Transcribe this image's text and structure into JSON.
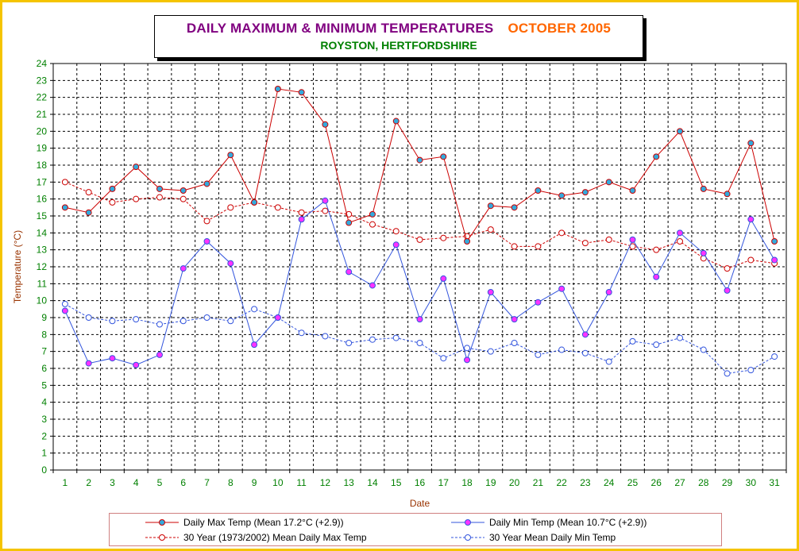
{
  "title": {
    "main": "DAILY MAXIMUM &  MINIMUM  TEMPERATURES",
    "month": "OCTOBER 2005",
    "subtitle": "ROYSTON, HERTFORDSHIRE"
  },
  "colors": {
    "max": "#cc0000",
    "min": "#3355dd",
    "axis_label": "#993300",
    "tick_label": "#008000",
    "border": "#f5c400"
  },
  "chart_data": {
    "type": "line",
    "xlabel": "Date",
    "ylabel": "Temperature (°C)",
    "ylim": [
      0,
      24
    ],
    "yticks": [
      0,
      1,
      2,
      3,
      4,
      5,
      6,
      7,
      8,
      9,
      10,
      11,
      12,
      13,
      14,
      15,
      16,
      17,
      18,
      19,
      20,
      21,
      22,
      23,
      24
    ],
    "grid": true,
    "legend_position": "bottom",
    "x": [
      1,
      2,
      3,
      4,
      5,
      6,
      7,
      8,
      9,
      10,
      11,
      12,
      13,
      14,
      15,
      16,
      17,
      18,
      19,
      20,
      21,
      22,
      23,
      24,
      25,
      26,
      27,
      28,
      29,
      30,
      31
    ],
    "series": [
      {
        "name": "Daily Max Temp (Mean 17.2°C (+2.9))",
        "style": "solid",
        "color": "#cc0000",
        "marker_fill": "#33aadd",
        "values": [
          15.5,
          15.2,
          16.6,
          17.9,
          16.6,
          16.5,
          16.9,
          18.6,
          15.8,
          22.5,
          22.3,
          20.4,
          14.6,
          15.1,
          20.6,
          18.3,
          18.5,
          13.5,
          15.6,
          15.5,
          16.5,
          16.2,
          16.4,
          17.0,
          16.5,
          18.5,
          20.0,
          16.6,
          16.3,
          19.3,
          13.5
        ]
      },
      {
        "name": "Daily Min Temp (Mean 10.7°C (+2.9))",
        "style": "solid",
        "color": "#3355dd",
        "marker_fill": "#ff33ff",
        "values": [
          9.4,
          6.3,
          6.6,
          6.2,
          6.8,
          11.9,
          13.5,
          12.2,
          7.4,
          9.0,
          14.8,
          15.9,
          11.7,
          10.9,
          13.3,
          8.9,
          11.3,
          6.5,
          10.5,
          8.9,
          9.9,
          10.7,
          8.0,
          10.5,
          13.6,
          11.4,
          14.0,
          12.8,
          10.6,
          14.8,
          12.4
        ]
      },
      {
        "name": "30 Year (1973/2002) Mean Daily Max Temp",
        "style": "dashed",
        "color": "#cc0000",
        "marker_fill": "#ffffff",
        "values": [
          17.0,
          16.4,
          15.8,
          16.0,
          16.1,
          16.0,
          14.7,
          15.5,
          15.8,
          15.5,
          15.2,
          15.3,
          15.1,
          14.5,
          14.1,
          13.6,
          13.7,
          13.8,
          14.2,
          13.2,
          13.2,
          14.0,
          13.4,
          13.6,
          13.2,
          13.0,
          13.5,
          12.5,
          11.9,
          12.4,
          12.2
        ]
      },
      {
        "name": "30 Year Mean Daily Min Temp",
        "style": "dashed",
        "color": "#3355dd",
        "marker_fill": "#ffffff",
        "values": [
          9.8,
          9.0,
          8.8,
          8.9,
          8.6,
          8.8,
          9.0,
          8.8,
          9.5,
          9.0,
          8.1,
          7.9,
          7.5,
          7.7,
          7.8,
          7.5,
          6.6,
          7.2,
          7.0,
          7.5,
          6.8,
          7.1,
          6.9,
          6.4,
          7.6,
          7.4,
          7.8,
          7.1,
          5.7,
          5.9,
          6.7
        ]
      }
    ]
  }
}
